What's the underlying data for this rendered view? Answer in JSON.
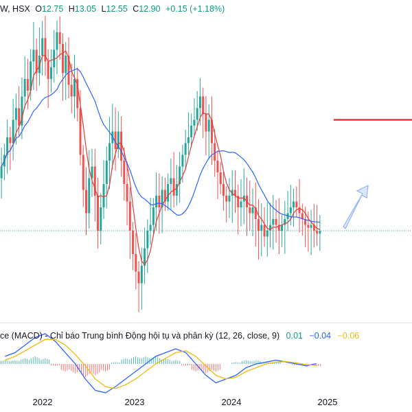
{
  "header": {
    "exchange_prefix": "W, HSX",
    "open_label": "O",
    "open": "12.75",
    "high_label": "H",
    "high": "13.05",
    "low_label": "L",
    "low": "12.55",
    "close_label": "C",
    "close": "12.90",
    "change": "+0.15 (+1.18%)"
  },
  "macd_legend": {
    "title": "ce (MACD) - Chỉ báo Trung bình Động hội tụ và phân kỳ (12, 26, close, 9)",
    "macd_value": "0.01",
    "signal_value": "−0.04",
    "hist_value": "−0.06"
  },
  "colors": {
    "up": "#26a69a",
    "down": "#ef5350",
    "ma_fast": "#e53935",
    "ma_slow": "#2962ff",
    "macd_line": "#2962ff",
    "signal_line": "#f0b90b",
    "hist_up": "#26a69a",
    "hist_down": "#ef5350",
    "target_line": "#e53935",
    "arrow": "#90b4f5"
  },
  "chart_data": {
    "type": "candlestick",
    "price_range": [
      11.5,
      16.5
    ],
    "x_ticks": [
      "2022",
      "2023",
      "2024",
      "2025"
    ],
    "target_level": 14.8,
    "current_price": 12.9,
    "weekly_closes": [
      14.0,
      14.2,
      14.5,
      14.4,
      14.8,
      15.0,
      14.7,
      15.2,
      15.5,
      15.3,
      15.8,
      16.0,
      15.6,
      15.9,
      16.2,
      15.8,
      15.5,
      15.7,
      16.0,
      16.3,
      16.1,
      15.6,
      15.9,
      15.4,
      15.2,
      15.5,
      15.0,
      14.2,
      13.6,
      13.2,
      13.8,
      14.0,
      13.5,
      12.9,
      13.3,
      13.7,
      14.1,
      14.4,
      14.6,
      14.3,
      14.6,
      14.1,
      13.7,
      13.4,
      12.9,
      12.5,
      12.2,
      12.0,
      12.3,
      12.6,
      12.9,
      13.0,
      13.3,
      13.5,
      13.3,
      13.6,
      13.4,
      13.7,
      13.8,
      13.5,
      13.7,
      14.0,
      14.2,
      14.4,
      14.5,
      14.7,
      14.8,
      15.0,
      15.2,
      14.9,
      14.6,
      14.8,
      14.4,
      14.1,
      13.9,
      13.7,
      13.5,
      13.4,
      13.5,
      13.6,
      13.5,
      13.3,
      13.4,
      13.5,
      13.3,
      13.2,
      13.3,
      13.1,
      12.9,
      13.0,
      12.8,
      12.9,
      13.0,
      13.1,
      13.0,
      12.9,
      13.0,
      13.1,
      13.2,
      13.3,
      13.4,
      13.3,
      13.2,
      13.1,
      13.0,
      12.95,
      13.0,
      12.9,
      12.85,
      12.9
    ],
    "ma_fast": "short moving average (red)",
    "ma_slow": "long moving average (blue)",
    "macd": {
      "macd_line": [
        0.2,
        0.3,
        0.5,
        0.7,
        0.8,
        0.6,
        0.3,
        0.0,
        -0.4,
        -0.7,
        -0.8,
        -0.6,
        -0.4,
        -0.2,
        0.0,
        0.2,
        0.3,
        0.4,
        0.3,
        0.0,
        -0.3,
        -0.5,
        -0.4,
        -0.3,
        -0.1,
        0.0,
        0.05,
        0.1,
        0.05,
        0.0,
        -0.05,
        0.01
      ],
      "signal_line": [
        0.1,
        0.2,
        0.35,
        0.5,
        0.65,
        0.65,
        0.5,
        0.25,
        -0.05,
        -0.4,
        -0.6,
        -0.65,
        -0.55,
        -0.4,
        -0.2,
        0.0,
        0.15,
        0.3,
        0.35,
        0.2,
        -0.05,
        -0.3,
        -0.4,
        -0.35,
        -0.2,
        -0.1,
        0.0,
        0.05,
        0.06,
        0.03,
        -0.02,
        -0.04
      ],
      "histogram": [
        0.1,
        0.1,
        0.15,
        0.2,
        0.15,
        -0.05,
        -0.2,
        -0.25,
        -0.35,
        -0.3,
        -0.2,
        0.05,
        0.15,
        0.2,
        0.2,
        0.2,
        0.15,
        0.1,
        -0.05,
        -0.2,
        -0.25,
        -0.2,
        0.0,
        0.05,
        0.1,
        0.1,
        0.05,
        0.05,
        -0.01,
        -0.03,
        -0.03,
        -0.06
      ]
    }
  }
}
